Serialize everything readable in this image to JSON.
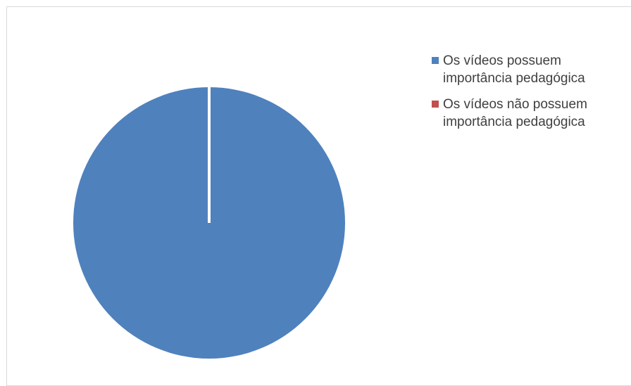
{
  "chart_data": {
    "type": "pie",
    "title": "",
    "categories": [
      "Os vídeos possuem\nimportância pedagógica",
      "Os vídeos não possuem\nimportância pedagógica"
    ],
    "values": [
      100,
      0
    ],
    "colors": [
      "#4f81bd",
      "#c0504d"
    ],
    "legend": "right",
    "start_angle_deg": 0
  }
}
